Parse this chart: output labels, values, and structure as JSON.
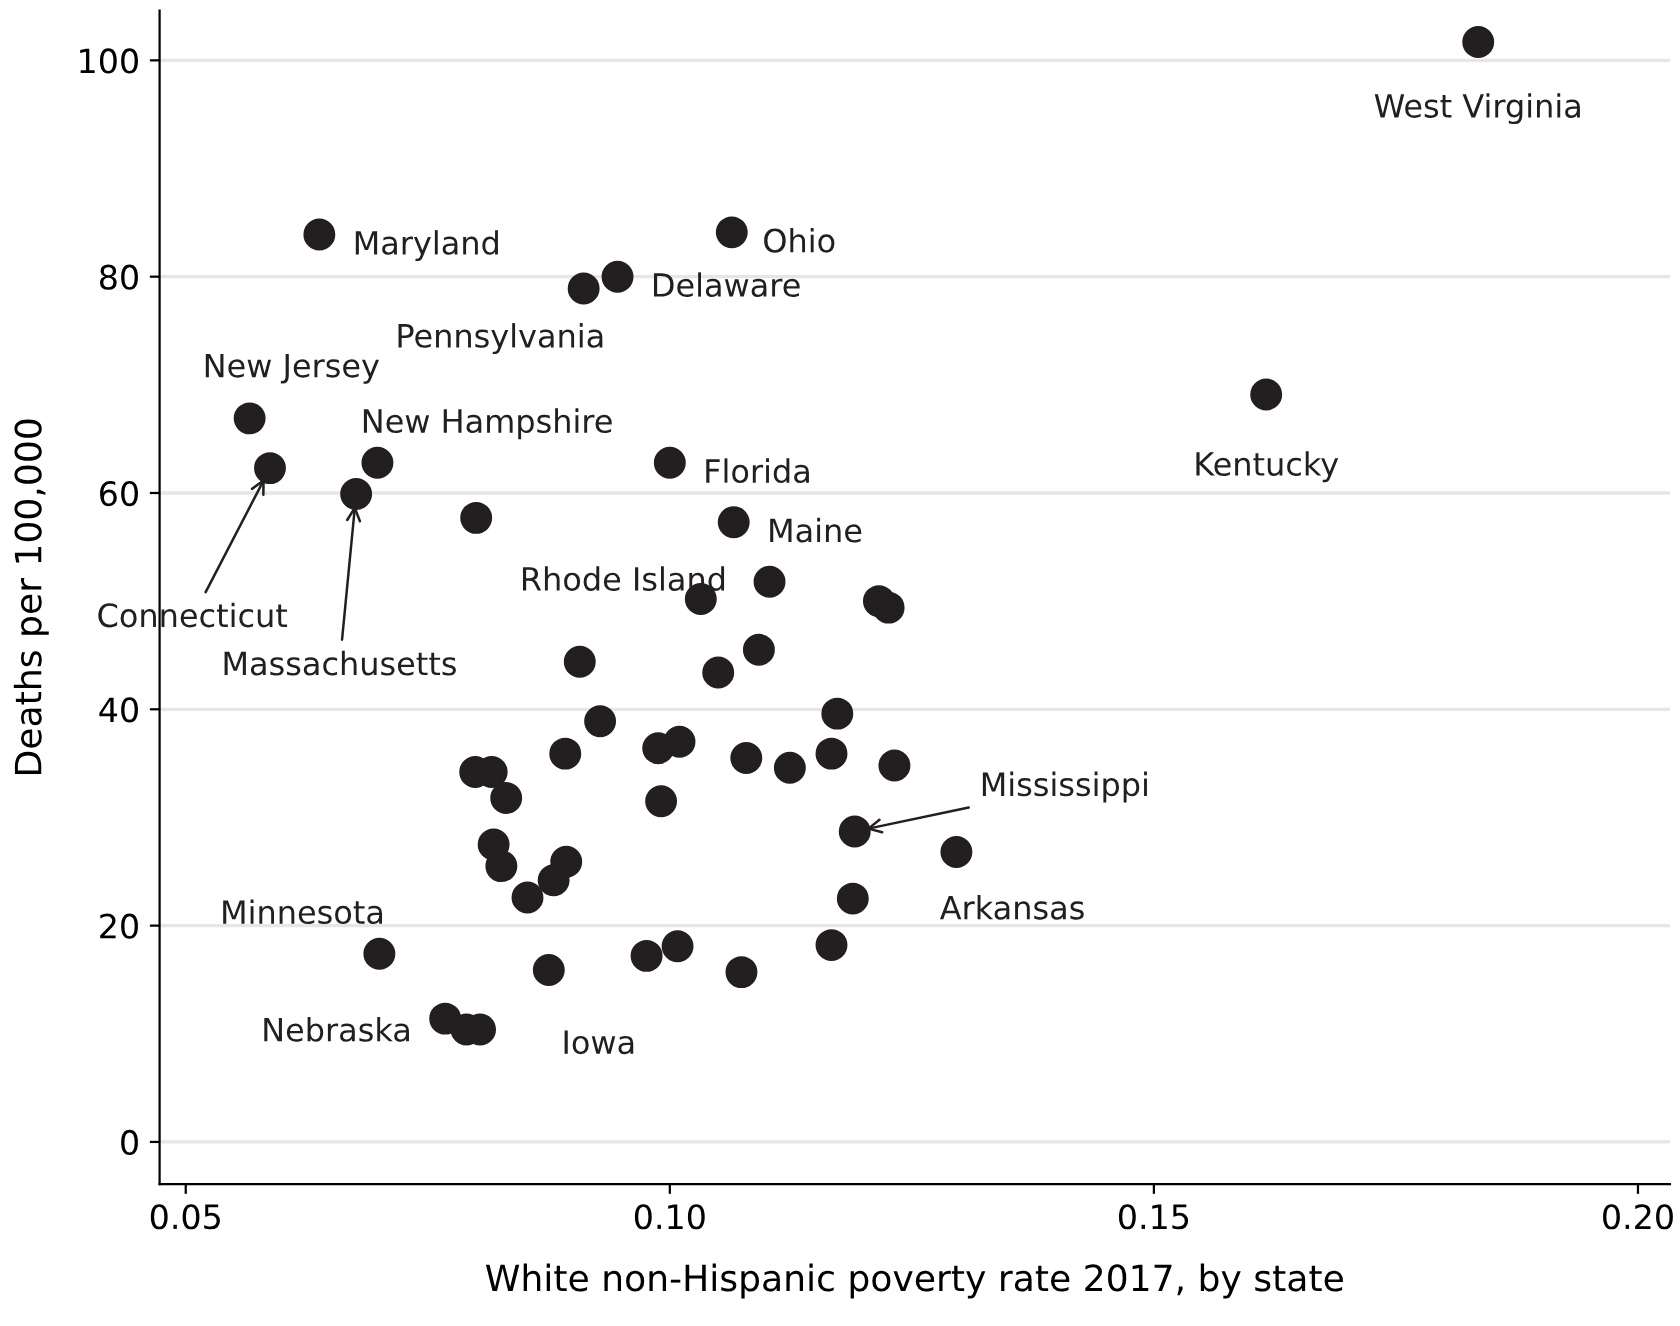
{
  "chart_data": {
    "type": "scatter",
    "xlabel": "White non-Hispanic poverty rate 2017, by state",
    "ylabel": "Deaths per 100,000",
    "xlim": [
      0.0473,
      0.2033
    ],
    "ylim": [
      -3.9,
      104.6
    ],
    "xticks": [
      {
        "value": 0.05,
        "label": "0.05"
      },
      {
        "value": 0.1,
        "label": "0.10"
      },
      {
        "value": 0.15,
        "label": "0.15"
      },
      {
        "value": 0.2,
        "label": "0.20"
      }
    ],
    "yticks": [
      0,
      20,
      40,
      60,
      80,
      100
    ],
    "grid": "y",
    "marker": "circle",
    "series": [
      {
        "color": "#231f20",
        "x": [
          0.1835,
          0.1616,
          0.1064,
          0.0638,
          0.0946,
          0.0911,
          0.0566,
          0.0587,
          0.0698,
          0.0676,
          0.1,
          0.08,
          0.1066,
          0.1032,
          0.1103,
          0.1216,
          0.1226,
          0.0907,
          0.1092,
          0.105,
          0.0928,
          0.1173,
          0.0892,
          0.0988,
          0.101,
          0.1079,
          0.1124,
          0.1167,
          0.1232,
          0.0799,
          0.0816,
          0.0831,
          0.0991,
          0.1191,
          0.1296,
          0.0818,
          0.0826,
          0.0893,
          0.088,
          0.0853,
          0.1189,
          0.0976,
          0.1008,
          0.1167,
          0.0875,
          0.1074,
          0.0768,
          0.079,
          0.0804,
          0.07
        ],
        "values": [
          101.7,
          69.1,
          84.1,
          83.9,
          80.0,
          78.9,
          66.9,
          62.3,
          62.8,
          59.9,
          62.8,
          57.7,
          57.3,
          50.2,
          51.8,
          50.0,
          49.4,
          44.4,
          45.5,
          43.4,
          38.9,
          39.6,
          35.9,
          36.4,
          37.0,
          35.5,
          34.6,
          35.9,
          34.8,
          34.2,
          34.2,
          31.8,
          31.5,
          28.7,
          26.8,
          27.5,
          25.5,
          25.9,
          24.2,
          22.6,
          22.5,
          17.2,
          18.1,
          18.2,
          15.9,
          15.7,
          11.4,
          10.4,
          10.4,
          17.4
        ]
      }
    ],
    "annotations": [
      {
        "text": "West Virginia",
        "x": 0.1835,
        "y": 101.7
      },
      {
        "text": "Kentucky",
        "x": 0.1616,
        "y": 69.1
      },
      {
        "text": "Ohio",
        "x": 0.1064,
        "y": 84.1
      },
      {
        "text": "Maryland",
        "x": 0.0638,
        "y": 83.9
      },
      {
        "text": "Delaware",
        "x": 0.0946,
        "y": 80.0
      },
      {
        "text": "Pennsylvania",
        "x": 0.0911,
        "y": 78.9
      },
      {
        "text": "New Jersey",
        "x": 0.0566,
        "y": 66.9
      },
      {
        "text": "Connecticut",
        "x": 0.0587,
        "y": 62.3
      },
      {
        "text": "New Hampshire",
        "x": 0.0698,
        "y": 62.8
      },
      {
        "text": "Massachusetts",
        "x": 0.0676,
        "y": 59.9
      },
      {
        "text": "Florida",
        "x": 0.1,
        "y": 62.8
      },
      {
        "text": "Rhode Island",
        "x": 0.08,
        "y": 57.7
      },
      {
        "text": "Maine",
        "x": 0.1066,
        "y": 57.3
      },
      {
        "text": "Mississippi",
        "x": 0.1191,
        "y": 28.7
      },
      {
        "text": "Arkansas",
        "x": 0.1296,
        "y": 26.8
      },
      {
        "text": "Minnesota",
        "x": 0.07,
        "y": 17.4
      },
      {
        "text": "Nebraska",
        "x": 0.0768,
        "y": 11.4
      },
      {
        "text": "Iowa",
        "x": 0.0875,
        "y": 15.9
      }
    ]
  }
}
